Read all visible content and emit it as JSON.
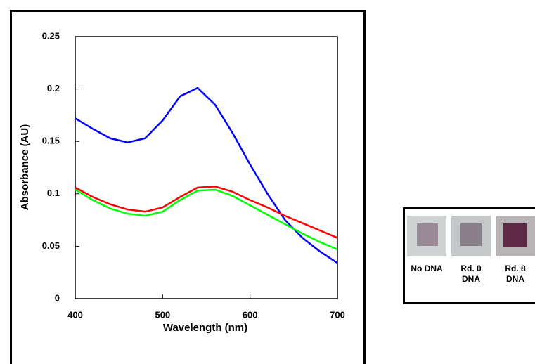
{
  "chart_data": {
    "type": "line",
    "x_label": "Wavelength (nm)",
    "y_label": "Absorbance (AU)",
    "x": [
      400,
      420,
      440,
      460,
      480,
      500,
      520,
      540,
      560,
      580,
      600,
      620,
      640,
      660,
      680,
      700
    ],
    "series": [
      {
        "color": "#0000ff",
        "values": [
          0.172,
          0.162,
          0.153,
          0.149,
          0.153,
          0.17,
          0.193,
          0.201,
          0.185,
          0.158,
          0.128,
          0.1,
          0.075,
          0.058,
          0.045,
          0.034
        ]
      },
      {
        "color": "#ff0000",
        "values": [
          0.106,
          0.097,
          0.09,
          0.085,
          0.083,
          0.087,
          0.097,
          0.106,
          0.107,
          0.102,
          0.094,
          0.087,
          0.079,
          0.072,
          0.065,
          0.058
        ]
      },
      {
        "color": "#00ff00",
        "values": [
          0.104,
          0.094,
          0.086,
          0.081,
          0.079,
          0.083,
          0.094,
          0.103,
          0.104,
          0.098,
          0.089,
          0.08,
          0.071,
          0.062,
          0.054,
          0.047
        ]
      }
    ],
    "xlim": [
      400,
      700
    ],
    "xticks": [
      400,
      500,
      600,
      700
    ],
    "ylim": [
      0,
      0.25
    ],
    "yticks": [
      0,
      0.05,
      0.1,
      0.15,
      0.2,
      0.25
    ],
    "inset_labels": [
      "No DNA",
      "Rd. 0 DNA",
      "Rd. 8 DNA"
    ]
  }
}
